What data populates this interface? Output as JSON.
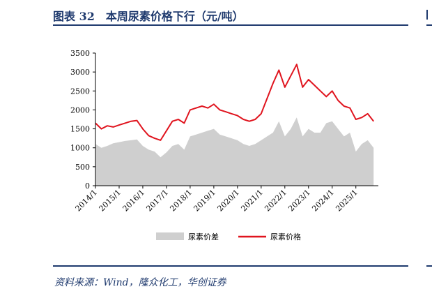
{
  "header": {
    "title": "图表 32　本周尿素价格下行（元/吨）"
  },
  "source": "资料来源：Wind，隆众化工，华创证券",
  "chart_data": {
    "type": "line",
    "title": "",
    "xlabel": "",
    "ylabel": "",
    "ylim": [
      0,
      3500
    ],
    "yticks": [
      0,
      500,
      1000,
      1500,
      2000,
      2500,
      3000,
      3500
    ],
    "xticks": [
      "2014/1",
      "2015/1",
      "2016/1",
      "2017/1",
      "2018/1",
      "2019/1",
      "2020/1",
      "2021/1",
      "2022/1",
      "2023/1",
      "2024/1",
      "2025/1"
    ],
    "grid": false,
    "legend_position": "bottom",
    "colors": {
      "price": "#e0141e",
      "spread": "#cfcfcf"
    },
    "x": [
      "2014/1",
      "2014/4",
      "2014/7",
      "2014/10",
      "2015/1",
      "2015/4",
      "2015/7",
      "2015/10",
      "2016/1",
      "2016/4",
      "2016/7",
      "2016/10",
      "2017/1",
      "2017/4",
      "2017/7",
      "2017/10",
      "2018/1",
      "2018/4",
      "2018/7",
      "2018/10",
      "2019/1",
      "2019/4",
      "2019/7",
      "2019/10",
      "2020/1",
      "2020/4",
      "2020/7",
      "2020/10",
      "2021/1",
      "2021/4",
      "2021/7",
      "2021/10",
      "2022/1",
      "2022/4",
      "2022/7",
      "2022/10",
      "2023/1",
      "2023/4",
      "2023/7",
      "2023/10",
      "2024/1",
      "2024/4",
      "2024/7",
      "2024/10",
      "2025/1",
      "2025/4",
      "2025/7",
      "2025/10"
    ],
    "series": [
      {
        "name": "尿素价差",
        "type": "area",
        "values": [
          1100,
          1000,
          1050,
          1120,
          1150,
          1180,
          1200,
          1220,
          1050,
          950,
          900,
          750,
          880,
          1050,
          1100,
          950,
          1300,
          1350,
          1400,
          1450,
          1500,
          1350,
          1300,
          1250,
          1200,
          1100,
          1050,
          1100,
          1200,
          1300,
          1400,
          1700,
          1300,
          1500,
          1800,
          1300,
          1500,
          1400,
          1400,
          1650,
          1700,
          1500,
          1300,
          1400,
          900,
          1100,
          1200,
          1000
        ]
      },
      {
        "name": "尿素价格",
        "type": "line",
        "values": [
          1650,
          1500,
          1580,
          1550,
          1600,
          1650,
          1700,
          1720,
          1500,
          1320,
          1250,
          1200,
          1450,
          1700,
          1750,
          1650,
          2000,
          2050,
          2100,
          2050,
          2150,
          2000,
          1950,
          1900,
          1850,
          1750,
          1700,
          1750,
          1900,
          2300,
          2700,
          3050,
          2600,
          2900,
          3200,
          2600,
          2800,
          2650,
          2500,
          2350,
          2500,
          2250,
          2100,
          2050,
          1750,
          1800,
          1900,
          1700
        ]
      }
    ]
  }
}
